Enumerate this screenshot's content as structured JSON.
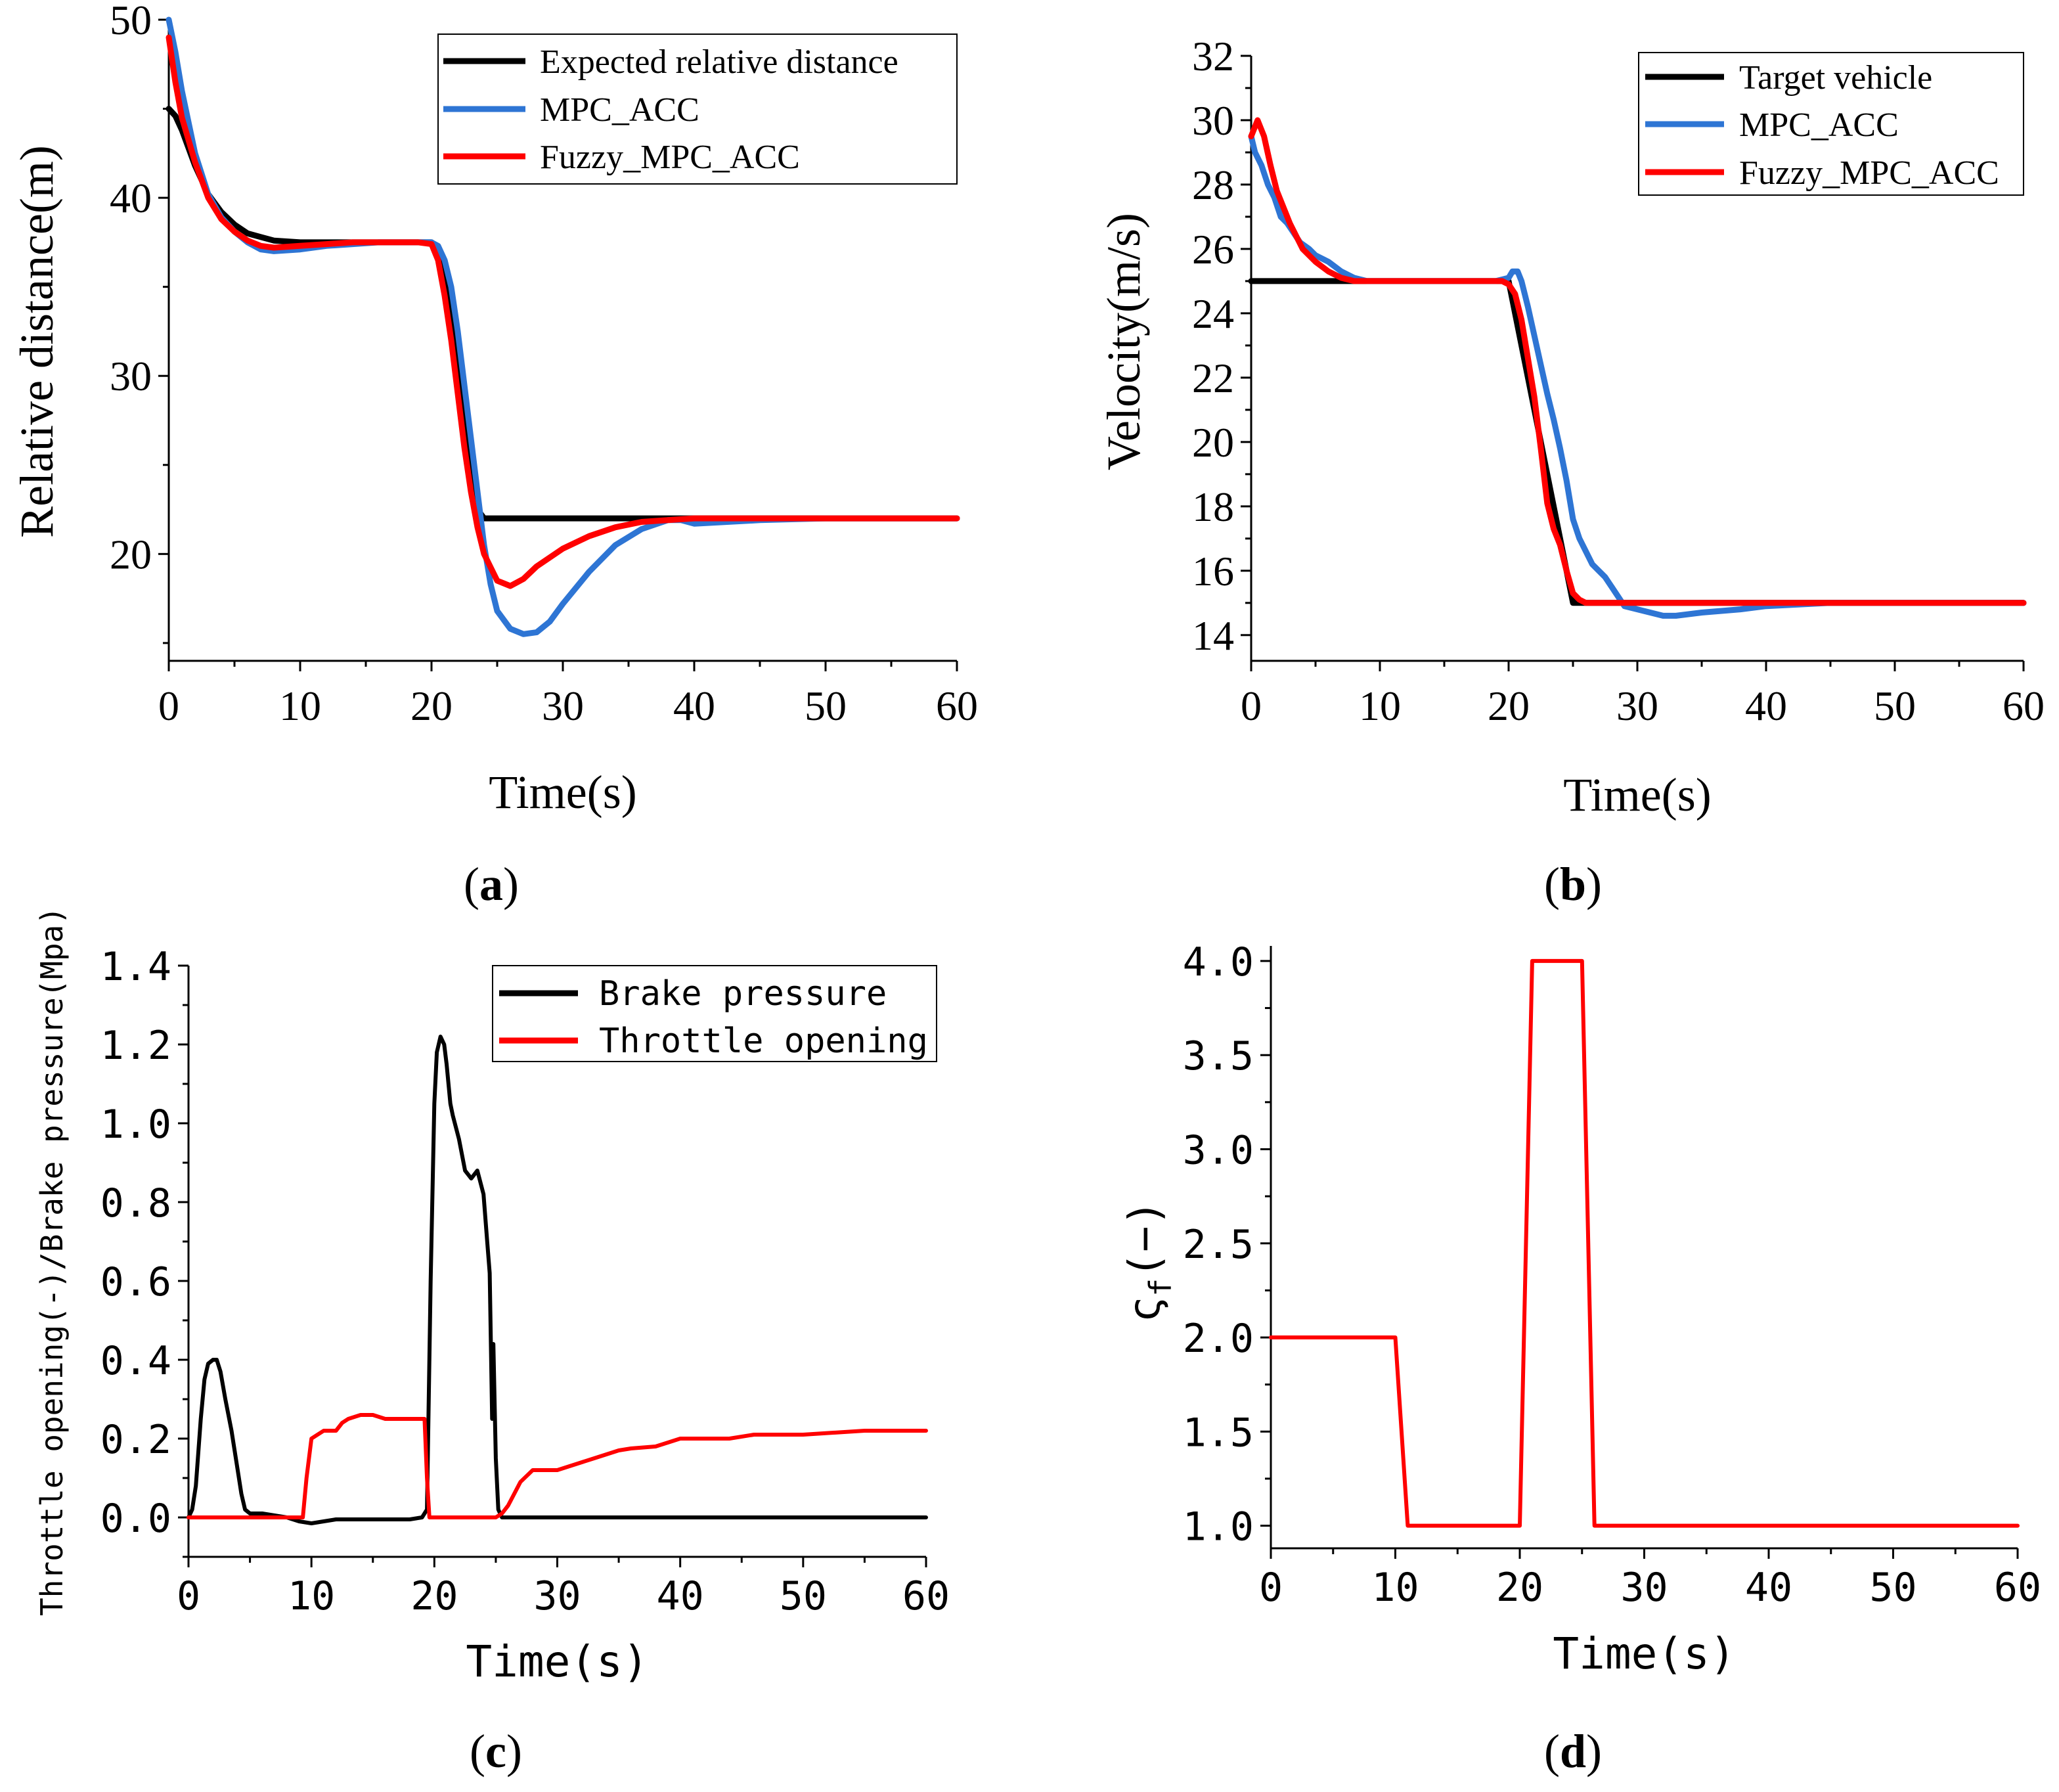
{
  "chart_data": [
    {
      "id": "a",
      "type": "line",
      "caption": "a",
      "xlabel": "Time(s)",
      "ylabel": "Relative distance(m)",
      "xlim": [
        0,
        60
      ],
      "ylim": [
        14,
        50
      ],
      "xticks": [
        0,
        10,
        20,
        30,
        40,
        50,
        60
      ],
      "yticks": [
        20,
        30,
        40,
        50
      ],
      "grid": false,
      "legend_position": "top-right",
      "series": [
        {
          "name": "Expected relative distance",
          "color": "#000000",
          "x": [
            0,
            0.5,
            1,
            2,
            3,
            4,
            5,
            6,
            7,
            8,
            10,
            12,
            14,
            16,
            18,
            19,
            20,
            20.5,
            21,
            21.5,
            22,
            22.5,
            23,
            23.5,
            24,
            26,
            30,
            35,
            40,
            45,
            50,
            55,
            60
          ],
          "y": [
            45,
            44.6,
            43.8,
            41.8,
            40.2,
            39.2,
            38.5,
            38.0,
            37.8,
            37.6,
            37.5,
            37.5,
            37.5,
            37.5,
            37.5,
            37.5,
            37.5,
            37.0,
            35.5,
            33.0,
            30.0,
            27.0,
            24.5,
            22.5,
            22.0,
            22.0,
            22.0,
            22.0,
            22.0,
            22.0,
            22.0,
            22.0,
            22.0
          ]
        },
        {
          "name": "MPC_ACC",
          "color": "#2e75d4",
          "x": [
            0,
            0.5,
            1,
            2,
            3,
            4,
            5,
            6,
            7,
            8,
            10,
            12,
            14,
            16,
            18,
            19,
            20,
            20.5,
            21,
            21.5,
            22,
            22.5,
            23,
            23.5,
            24,
            24.5,
            25,
            26,
            27,
            28,
            29,
            30,
            32,
            34,
            36,
            38,
            39,
            40,
            45,
            50,
            60
          ],
          "y": [
            50,
            48.2,
            46.0,
            42.5,
            40.2,
            38.9,
            38.1,
            37.5,
            37.1,
            37.0,
            37.1,
            37.3,
            37.4,
            37.5,
            37.5,
            37.5,
            37.5,
            37.3,
            36.5,
            35.0,
            32.5,
            29.5,
            26.5,
            23.5,
            20.5,
            18.3,
            16.8,
            15.8,
            15.5,
            15.6,
            16.2,
            17.2,
            19.0,
            20.5,
            21.4,
            21.9,
            21.9,
            21.7,
            21.9,
            22.0,
            22.0
          ]
        },
        {
          "name": "Fuzzy_MPC_ACC",
          "color": "#ff0000",
          "x": [
            0,
            0.5,
            1,
            2,
            3,
            4,
            5,
            6,
            7,
            8,
            10,
            12,
            14,
            16,
            18,
            19,
            20,
            20.5,
            21,
            21.5,
            22,
            22.5,
            23,
            23.5,
            24,
            25,
            26,
            27,
            28,
            30,
            32,
            34,
            36,
            38,
            40,
            50,
            60
          ],
          "y": [
            49,
            46.5,
            44.5,
            42.0,
            40.0,
            38.8,
            38.1,
            37.6,
            37.3,
            37.2,
            37.3,
            37.4,
            37.5,
            37.5,
            37.5,
            37.5,
            37.4,
            36.5,
            34.5,
            32.0,
            29.0,
            26.0,
            23.5,
            21.5,
            20.0,
            18.5,
            18.2,
            18.6,
            19.3,
            20.3,
            21.0,
            21.5,
            21.8,
            21.9,
            22.0,
            22.0,
            22.0
          ]
        }
      ]
    },
    {
      "id": "b",
      "type": "line",
      "caption": "b",
      "xlabel": "Time(s)",
      "ylabel": "Velocity(m/s)",
      "xlim": [
        0,
        60
      ],
      "ylim": [
        13.2,
        32
      ],
      "xticks": [
        0,
        10,
        20,
        30,
        40,
        50,
        60
      ],
      "yticks": [
        14,
        16,
        18,
        20,
        22,
        24,
        26,
        28,
        30,
        32
      ],
      "grid": false,
      "legend_position": "top-right",
      "series": [
        {
          "name": "Target vehicle",
          "color": "#000000",
          "x": [
            0,
            20,
            25,
            60
          ],
          "y": [
            25,
            25,
            15,
            15
          ]
        },
        {
          "name": "MPC_ACC",
          "color": "#2e75d4",
          "x": [
            0,
            0.3,
            0.8,
            1.3,
            1.8,
            2.3,
            2.8,
            3.3,
            3.8,
            4.5,
            5,
            6,
            7,
            8,
            9,
            10,
            12,
            14,
            16,
            18,
            19,
            20,
            20.3,
            20.7,
            21,
            21.5,
            22,
            22.5,
            23,
            23.5,
            24,
            24.5,
            25,
            25.5,
            26,
            26.5,
            27,
            27.5,
            28,
            28.5,
            29,
            30,
            31,
            32,
            33,
            35,
            38,
            40,
            45,
            50,
            60
          ],
          "y": [
            29.5,
            29.0,
            28.6,
            28.0,
            27.6,
            27.0,
            26.8,
            26.5,
            26.2,
            26.0,
            25.8,
            25.6,
            25.3,
            25.1,
            25.0,
            25.0,
            25.0,
            25.0,
            25.0,
            25.0,
            25.0,
            25.1,
            25.3,
            25.3,
            25.0,
            24.2,
            23.3,
            22.4,
            21.5,
            20.7,
            19.8,
            18.8,
            17.6,
            17.0,
            16.6,
            16.2,
            16.0,
            15.8,
            15.5,
            15.2,
            14.9,
            14.8,
            14.7,
            14.6,
            14.6,
            14.7,
            14.8,
            14.9,
            15.0,
            15.0,
            15.0
          ]
        },
        {
          "name": "Fuzzy_MPC_ACC",
          "color": "#ff0000",
          "x": [
            0,
            0.5,
            1,
            1.5,
            2,
            3,
            4,
            5,
            6,
            7,
            8,
            9,
            10,
            12,
            14,
            16,
            18,
            19,
            19.5,
            20,
            20.5,
            21,
            21.5,
            22,
            22.5,
            23,
            23.5,
            24,
            24.5,
            25,
            25.5,
            26,
            28,
            30,
            32,
            35,
            40,
            50,
            60
          ],
          "y": [
            29.5,
            30.0,
            29.5,
            28.6,
            27.8,
            26.8,
            26.0,
            25.6,
            25.3,
            25.1,
            25.0,
            25.0,
            25.0,
            25.0,
            25.0,
            25.0,
            25.0,
            25.0,
            25.0,
            24.9,
            24.6,
            23.8,
            22.6,
            21.4,
            19.8,
            18.1,
            17.3,
            16.8,
            16.0,
            15.3,
            15.1,
            15.0,
            15.0,
            15.0,
            15.0,
            15.0,
            15.0,
            15.0,
            15.0
          ]
        }
      ]
    },
    {
      "id": "c",
      "type": "line",
      "caption": "c",
      "xlabel": "Time(s)",
      "ylabel": "Throttle opening(-)/Brake pressure(Mpa)",
      "xlim": [
        0,
        60
      ],
      "ylim": [
        -0.1,
        1.4
      ],
      "xticks": [
        0,
        10,
        20,
        30,
        40,
        50,
        60
      ],
      "yticks": [
        0.0,
        0.2,
        0.4,
        0.6,
        0.8,
        1.0,
        1.2,
        1.4
      ],
      "ytick_labels": [
        "0.0",
        "0.2",
        "0.4",
        "0.6",
        "0.8",
        "1.0",
        "1.2",
        "1.4"
      ],
      "grid": false,
      "legend_position": "top-right",
      "series": [
        {
          "name": "Brake pressure",
          "color": "#000000",
          "x": [
            0,
            0.3,
            0.6,
            1,
            1.3,
            1.6,
            2,
            2.3,
            2.6,
            3,
            3.5,
            4,
            4.3,
            4.6,
            5,
            6,
            7,
            8,
            9,
            10,
            11,
            12,
            14,
            16,
            18,
            19,
            19.4,
            19.7,
            20,
            20.2,
            20.5,
            20.8,
            21,
            21.3,
            21.5,
            22,
            22.5,
            23,
            23.5,
            24,
            24.3,
            24.5,
            24.7,
            24.8,
            25,
            25.2,
            25.5,
            26,
            30,
            40,
            50,
            60
          ],
          "y": [
            0,
            0.02,
            0.08,
            0.25,
            0.35,
            0.39,
            0.4,
            0.4,
            0.37,
            0.3,
            0.22,
            0.12,
            0.06,
            0.02,
            0.01,
            0.01,
            0.005,
            0.0,
            -0.01,
            -0.015,
            -0.01,
            -0.005,
            -0.005,
            -0.005,
            -0.005,
            0.0,
            0.02,
            0.6,
            1.05,
            1.18,
            1.22,
            1.2,
            1.15,
            1.05,
            1.02,
            0.96,
            0.88,
            0.86,
            0.88,
            0.82,
            0.7,
            0.62,
            0.25,
            0.44,
            0.15,
            0.02,
            0.0,
            0.0,
            0.0,
            0.0,
            0.0,
            0.0
          ]
        },
        {
          "name": "Throttle opening",
          "color": "#ff0000",
          "x": [
            0,
            9.3,
            9.6,
            10,
            10.5,
            11,
            12,
            12.5,
            13,
            14,
            15,
            16,
            18,
            19.2,
            19.4,
            19.6,
            20,
            24,
            25,
            25.5,
            26,
            27,
            28,
            29,
            30,
            32,
            33,
            34,
            35,
            36,
            38,
            39,
            40,
            44,
            46,
            50,
            55,
            60
          ],
          "y": [
            0,
            0,
            0.1,
            0.2,
            0.21,
            0.22,
            0.22,
            0.24,
            0.25,
            0.26,
            0.26,
            0.25,
            0.25,
            0.25,
            0.1,
            0.0,
            0.0,
            0.0,
            0.0,
            0.01,
            0.03,
            0.09,
            0.12,
            0.12,
            0.12,
            0.14,
            0.15,
            0.16,
            0.17,
            0.175,
            0.18,
            0.19,
            0.2,
            0.2,
            0.21,
            0.21,
            0.22,
            0.22
          ]
        }
      ]
    },
    {
      "id": "d",
      "type": "line",
      "caption": "d",
      "xlabel": "Time(s)",
      "ylabel_symbol": "ς",
      "ylabel_sub": "f",
      "ylabel_suffix": "(−)",
      "xlim": [
        0,
        60
      ],
      "ylim": [
        0.88,
        4.08
      ],
      "xticks": [
        0,
        10,
        20,
        30,
        40,
        50,
        60
      ],
      "yticks": [
        1.0,
        1.5,
        2.0,
        2.5,
        3.0,
        3.5,
        4.0
      ],
      "ytick_labels": [
        "1.0",
        "1.5",
        "2.0",
        "2.5",
        "3.0",
        "3.5",
        "4.0"
      ],
      "grid": false,
      "series": [
        {
          "name": "",
          "color": "#ff0000",
          "x": [
            0,
            10,
            11,
            20,
            21,
            25,
            26,
            60
          ],
          "y": [
            2.0,
            2.0,
            1.0,
            1.0,
            4.0,
            4.0,
            1.0,
            1.0
          ]
        }
      ]
    }
  ]
}
